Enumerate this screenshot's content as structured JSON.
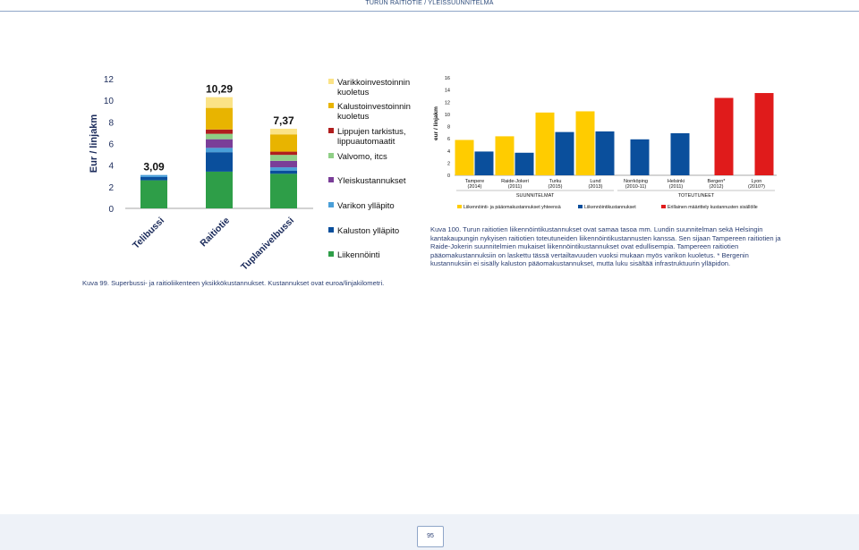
{
  "header": {
    "text": "TURUN RAITIOTIE  /  YLEISSUUNNITELMA"
  },
  "page_number": "95",
  "chart_data": [
    {
      "type": "bar",
      "stacked": true,
      "ylabel": "Eur / linjakm",
      "ylim": [
        0,
        12
      ],
      "yticks": [
        "0",
        "2",
        "4",
        "6",
        "8",
        "10",
        "12"
      ],
      "categories": [
        "Telibussi",
        "Raitiotie",
        "Tuplanivelbussi"
      ],
      "totals": [
        "3,09",
        "10,29",
        "7,37"
      ],
      "legend_position": "right",
      "series": [
        {
          "name": "Liikennöinti",
          "color": "#2e9e48",
          "values": [
            2.6,
            3.4,
            3.2
          ]
        },
        {
          "name": "Kaluston ylläpito",
          "color": "#0a4f9c",
          "values": [
            0.3,
            1.8,
            0.3
          ]
        },
        {
          "name": "Varikon ylläpito",
          "color": "#4a9fd8",
          "values": [
            0.19,
            0.4,
            0.3
          ]
        },
        {
          "name": "Yleiskustannukset",
          "color": "#7a3e98",
          "values": [
            0,
            0.8,
            0.6
          ]
        },
        {
          "name": "Valvomo, itcs",
          "color": "#8fcf86",
          "values": [
            0,
            0.5,
            0.55
          ]
        },
        {
          "name": "Lippujen tarkistus, lippuautomaatit",
          "color": "#b01e1e",
          "values": [
            0,
            0.4,
            0.3
          ]
        },
        {
          "name": "Kalustoinvestoinnin kuoletus",
          "color": "#e8b400",
          "values": [
            0,
            2.0,
            1.6
          ]
        },
        {
          "name": "Varikkoinvestoinnin kuoletus",
          "color": "#fbe387",
          "values": [
            0,
            0.99,
            0.52
          ]
        }
      ]
    },
    {
      "type": "bar",
      "ylabel": "eur / linjakm",
      "ylim": [
        0,
        16
      ],
      "yticks": [
        "0",
        "2",
        "4",
        "6",
        "8",
        "10",
        "12",
        "14",
        "16"
      ],
      "categories": [
        {
          "name": "Tampere",
          "year": "(2014)"
        },
        {
          "name": "Raide-Jokeri",
          "year": "(2011)"
        },
        {
          "name": "Turku",
          "year": "(2015)"
        },
        {
          "name": "Lund",
          "year": "(2013)"
        },
        {
          "name": "Norrköping",
          "year": "(2010-11)"
        },
        {
          "name": "Helsinki",
          "year": "(2011)"
        },
        {
          "name": "Bergen*",
          "year": "(2012)"
        },
        {
          "name": "Lyon",
          "year": "(2010?)"
        }
      ],
      "groups": [
        {
          "label": "SUUNNITELMAT",
          "categories": [
            0,
            1,
            2,
            3
          ]
        },
        {
          "label": "TOTEUTUNEET",
          "categories": [
            4,
            5,
            6,
            7
          ]
        }
      ],
      "series": [
        {
          "name": "Liikennöinti- ja pääomakustannukset yhteensä",
          "color": "#ffcc00",
          "values": [
            5.8,
            6.4,
            10.3,
            10.5,
            null,
            null,
            null,
            null
          ]
        },
        {
          "name": "Liikennöintikustannukset",
          "color": "#0a4f9c",
          "values": [
            3.9,
            3.7,
            7.1,
            7.2,
            5.9,
            6.9,
            null,
            null
          ]
        },
        {
          "name": "Erillainen määrittely kustannusten sisällölle",
          "color": "#e01b1b",
          "values": [
            null,
            null,
            null,
            null,
            null,
            null,
            12.7,
            13.5
          ]
        }
      ]
    }
  ],
  "captions": {
    "right": "Kuva 100. Turun raitiotien liikennöintikustannukset ovat samaa tasoa mm. Lundin suunnitelman sekä Helsingin kantakaupungin nykyisen raitiotien toteutuneiden liikennöintikustannusten kanssa. Sen sijaan Tampereen raitiotien ja Raide-Jokerin suunnitelmien mukaiset liikennöintikustannukset ovat edullisempia. Tampereen raitiotien pääomakustannuksiin on laskettu tässä vertailtavuuden vuoksi mukaan myös varikon kuoletus. * Bergenin kustannuksiin ei sisälly kaluston pääomakustannukset, mutta luku sisältää infrastruktuurin ylläpidon.",
    "left": "Kuva 99. Superbussi- ja raitioliikenteen yksikkökustannukset. Kustannukset ovat euroa/linjakilometri."
  }
}
